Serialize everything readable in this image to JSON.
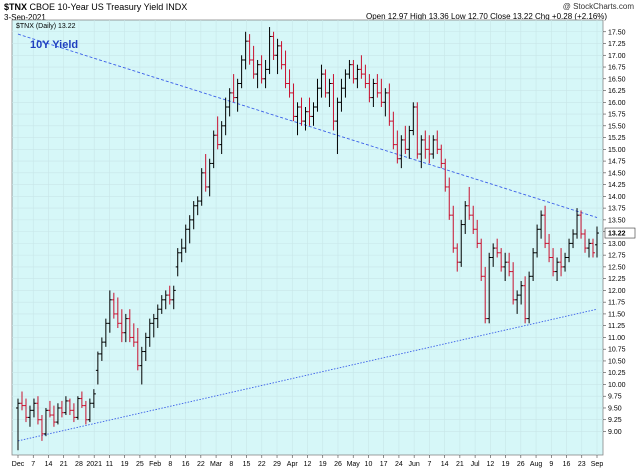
{
  "header": {
    "ticker": "$TNX",
    "name": "CBOE 10-Year US Treasury Yield",
    "exchange": "INDX",
    "date": "3-Sep-2021",
    "ohlc_text": "Open 12.97  High 13.36  Low 12.70  Close 13.22  Chg +0.28 (+2.16%)",
    "watermark": "@ StockCharts.com"
  },
  "chart_data": {
    "type": "ohlc",
    "inner_label": "$TNX (Daily) 13.22",
    "series_label": "10Y Yield",
    "last_value_label": "13.22",
    "ylim": [
      8.5,
      17.75
    ],
    "yticks": [
      9.0,
      9.25,
      9.5,
      9.75,
      10.0,
      10.25,
      10.5,
      10.75,
      11.0,
      11.25,
      11.5,
      11.75,
      12.0,
      12.25,
      12.5,
      12.75,
      13.0,
      13.25,
      13.5,
      13.75,
      14.0,
      14.25,
      14.5,
      14.75,
      15.0,
      15.25,
      15.5,
      15.75,
      16.0,
      16.25,
      16.5,
      16.75,
      17.0,
      17.25,
      17.5
    ],
    "xtick_labels": [
      "Dec",
      "7",
      "14",
      "21",
      "28",
      "2021",
      "11",
      "19",
      "25",
      "Feb",
      "8",
      "16",
      "22",
      "Mar",
      "8",
      "15",
      "22",
      "29",
      "Apr",
      "12",
      "19",
      "26",
      "May",
      "10",
      "17",
      "24",
      "Jun",
      "7",
      "14",
      "21",
      "Jul",
      "12",
      "19",
      "26",
      "Aug",
      "9",
      "16",
      "23",
      "Sep"
    ],
    "bars": [
      [
        9.5,
        9.7,
        8.6,
        9.6
      ],
      [
        9.6,
        9.85,
        9.45,
        9.55
      ],
      [
        9.55,
        9.7,
        9.2,
        9.3
      ],
      [
        9.3,
        9.55,
        9.1,
        9.45
      ],
      [
        9.45,
        9.7,
        9.3,
        9.6
      ],
      [
        9.6,
        9.75,
        9.15,
        9.25
      ],
      [
        9.25,
        9.35,
        8.8,
        8.95
      ],
      [
        8.95,
        9.5,
        8.9,
        9.45
      ],
      [
        9.45,
        9.65,
        9.3,
        9.35
      ],
      [
        9.35,
        9.55,
        9.1,
        9.2
      ],
      [
        9.2,
        9.6,
        9.15,
        9.5
      ],
      [
        9.5,
        9.65,
        9.3,
        9.4
      ],
      [
        9.4,
        9.75,
        9.35,
        9.65
      ],
      [
        9.65,
        9.7,
        9.35,
        9.45
      ],
      [
        9.45,
        9.6,
        9.2,
        9.3
      ],
      [
        9.3,
        9.75,
        9.25,
        9.7
      ],
      [
        9.7,
        9.85,
        9.5,
        9.55
      ],
      [
        9.55,
        9.65,
        9.15,
        9.25
      ],
      [
        9.25,
        9.7,
        9.2,
        9.6
      ],
      [
        9.6,
        9.9,
        9.5,
        9.8
      ],
      [
        10.3,
        10.7,
        10.0,
        10.65
      ],
      [
        10.65,
        11.0,
        10.5,
        10.9
      ],
      [
        10.9,
        11.4,
        10.8,
        11.3
      ],
      [
        11.3,
        12.0,
        11.1,
        11.8
      ],
      [
        11.8,
        11.95,
        11.4,
        11.5
      ],
      [
        11.5,
        11.85,
        11.2,
        11.3
      ],
      [
        11.3,
        11.6,
        10.9,
        11.1
      ],
      [
        11.1,
        11.5,
        10.9,
        11.4
      ],
      [
        11.4,
        11.6,
        10.9,
        11.0
      ],
      [
        11.0,
        11.3,
        10.8,
        10.9
      ],
      [
        10.9,
        11.2,
        10.3,
        10.4
      ],
      [
        10.4,
        10.8,
        10.0,
        10.7
      ],
      [
        10.7,
        11.1,
        10.5,
        11.0
      ],
      [
        11.0,
        11.4,
        10.8,
        11.3
      ],
      [
        11.3,
        11.5,
        11.0,
        11.4
      ],
      [
        11.4,
        11.7,
        11.2,
        11.6
      ],
      [
        11.6,
        11.9,
        11.5,
        11.8
      ],
      [
        11.8,
        12.0,
        11.6,
        11.9
      ],
      [
        11.9,
        12.1,
        11.7,
        11.8
      ],
      [
        11.8,
        12.1,
        11.6,
        12.0
      ],
      [
        12.5,
        12.9,
        12.3,
        12.8
      ],
      [
        12.8,
        13.1,
        12.6,
        12.9
      ],
      [
        12.9,
        13.4,
        12.8,
        13.3
      ],
      [
        13.3,
        13.6,
        13.0,
        13.5
      ],
      [
        13.5,
        13.9,
        13.3,
        13.8
      ],
      [
        13.8,
        14.0,
        13.6,
        13.9
      ],
      [
        13.9,
        14.6,
        13.8,
        14.5
      ],
      [
        14.5,
        14.9,
        14.1,
        14.2
      ],
      [
        14.2,
        14.8,
        14.0,
        14.7
      ],
      [
        14.7,
        15.4,
        14.6,
        15.3
      ],
      [
        15.3,
        15.7,
        15.0,
        15.1
      ],
      [
        15.1,
        15.6,
        14.9,
        15.5
      ],
      [
        15.5,
        16.1,
        15.3,
        15.9
      ],
      [
        15.9,
        16.3,
        15.7,
        16.2
      ],
      [
        16.2,
        16.6,
        16.0,
        16.1
      ],
      [
        16.1,
        16.5,
        15.8,
        16.4
      ],
      [
        16.4,
        17.0,
        16.3,
        16.9
      ],
      [
        16.9,
        17.5,
        16.7,
        17.3
      ],
      [
        17.3,
        17.45,
        16.8,
        16.9
      ],
      [
        16.9,
        17.2,
        16.5,
        16.6
      ],
      [
        16.6,
        16.9,
        16.3,
        16.8
      ],
      [
        16.8,
        17.0,
        16.4,
        16.5
      ],
      [
        16.5,
        16.9,
        16.3,
        16.7
      ],
      [
        16.7,
        17.6,
        16.6,
        17.4
      ],
      [
        17.4,
        17.5,
        16.9,
        17.0
      ],
      [
        17.0,
        17.35,
        16.6,
        17.2
      ],
      [
        17.2,
        17.3,
        16.7,
        16.8
      ],
      [
        16.8,
        17.1,
        16.3,
        16.4
      ],
      [
        16.4,
        16.7,
        16.1,
        16.2
      ],
      [
        16.2,
        16.4,
        15.6,
        15.7
      ],
      [
        15.7,
        16.0,
        15.3,
        15.9
      ],
      [
        15.9,
        16.1,
        15.5,
        15.6
      ],
      [
        15.6,
        15.9,
        15.4,
        15.8
      ],
      [
        15.8,
        16.1,
        15.5,
        15.7
      ],
      [
        15.7,
        16.0,
        15.5,
        15.9
      ],
      [
        15.9,
        16.5,
        15.8,
        16.3
      ],
      [
        16.3,
        16.8,
        16.1,
        16.6
      ],
      [
        16.6,
        16.7,
        16.1,
        16.2
      ],
      [
        16.2,
        16.5,
        15.9,
        16.4
      ],
      [
        16.4,
        16.6,
        15.4,
        15.6
      ],
      [
        15.6,
        16.1,
        14.9,
        16.0
      ],
      [
        16.0,
        16.5,
        15.8,
        16.3
      ],
      [
        16.3,
        16.7,
        16.1,
        16.6
      ],
      [
        16.6,
        16.9,
        16.5,
        16.8
      ],
      [
        16.8,
        16.9,
        16.4,
        16.5
      ],
      [
        16.5,
        16.8,
        16.3,
        16.7
      ],
      [
        16.7,
        17.0,
        16.5,
        16.6
      ],
      [
        16.6,
        16.8,
        16.3,
        16.4
      ],
      [
        16.4,
        16.6,
        16.0,
        16.1
      ],
      [
        16.1,
        16.5,
        15.9,
        16.4
      ],
      [
        16.4,
        16.6,
        16.1,
        16.2
      ],
      [
        16.2,
        16.5,
        15.9,
        16.0
      ],
      [
        16.0,
        16.3,
        15.7,
        16.2
      ],
      [
        16.2,
        16.4,
        15.5,
        15.6
      ],
      [
        15.6,
        15.8,
        15.0,
        15.1
      ],
      [
        15.1,
        15.4,
        14.7,
        14.8
      ],
      [
        14.8,
        15.3,
        14.6,
        15.2
      ],
      [
        15.2,
        15.5,
        14.9,
        15.0
      ],
      [
        15.0,
        15.5,
        14.8,
        15.4
      ],
      [
        15.4,
        16.0,
        15.3,
        15.9
      ],
      [
        15.9,
        16.0,
        14.8,
        14.9
      ],
      [
        14.9,
        15.3,
        14.6,
        15.2
      ],
      [
        15.2,
        15.4,
        14.8,
        15.0
      ],
      [
        15.0,
        15.3,
        14.7,
        14.9
      ],
      [
        14.9,
        15.3,
        14.8,
        15.2
      ],
      [
        15.2,
        15.4,
        14.9,
        15.0
      ],
      [
        15.0,
        15.1,
        14.6,
        14.7
      ],
      [
        14.7,
        14.8,
        14.1,
        14.2
      ],
      [
        14.2,
        14.4,
        13.5,
        13.6
      ],
      [
        13.6,
        13.8,
        12.8,
        12.9
      ],
      [
        12.9,
        13.0,
        12.4,
        12.6
      ],
      [
        12.6,
        13.5,
        12.5,
        13.4
      ],
      [
        13.4,
        13.9,
        13.2,
        13.8
      ],
      [
        13.8,
        14.2,
        13.5,
        13.6
      ],
      [
        13.6,
        13.8,
        13.2,
        13.3
      ],
      [
        13.3,
        13.5,
        12.9,
        13.0
      ],
      [
        13.0,
        13.1,
        12.2,
        12.3
      ],
      [
        12.3,
        12.5,
        11.3,
        11.4
      ],
      [
        11.4,
        12.8,
        11.3,
        12.7
      ],
      [
        12.7,
        13.0,
        12.5,
        12.9
      ],
      [
        12.9,
        13.1,
        12.7,
        12.8
      ],
      [
        12.8,
        12.9,
        12.4,
        12.5
      ],
      [
        12.5,
        12.8,
        12.2,
        12.6
      ],
      [
        12.6,
        12.8,
        12.3,
        12.4
      ],
      [
        12.4,
        12.6,
        11.7,
        11.8
      ],
      [
        11.8,
        12.0,
        11.5,
        11.9
      ],
      [
        11.9,
        12.2,
        11.7,
        12.1
      ],
      [
        12.1,
        12.3,
        11.3,
        11.4
      ],
      [
        11.4,
        12.4,
        11.3,
        12.3
      ],
      [
        12.3,
        12.9,
        12.2,
        12.8
      ],
      [
        12.8,
        13.4,
        12.7,
        13.3
      ],
      [
        13.3,
        13.7,
        13.1,
        13.6
      ],
      [
        13.6,
        13.8,
        12.9,
        13.0
      ],
      [
        13.0,
        13.2,
        12.6,
        12.7
      ],
      [
        12.7,
        12.9,
        12.3,
        12.4
      ],
      [
        12.4,
        12.7,
        12.2,
        12.6
      ],
      [
        12.6,
        12.9,
        12.3,
        12.5
      ],
      [
        12.5,
        12.8,
        12.4,
        12.7
      ],
      [
        12.7,
        13.1,
        12.6,
        13.0
      ],
      [
        13.0,
        13.3,
        12.9,
        13.2
      ],
      [
        13.2,
        13.75,
        13.1,
        13.6
      ],
      [
        13.6,
        13.7,
        13.1,
        13.2
      ],
      [
        13.2,
        13.3,
        12.8,
        12.9
      ],
      [
        12.9,
        13.1,
        12.7,
        13.0
      ],
      [
        13.0,
        13.1,
        12.7,
        12.8
      ],
      [
        12.97,
        13.36,
        12.7,
        13.22
      ]
    ],
    "trendlines": [
      {
        "style": "dashed",
        "from": [
          0,
          17.45
        ],
        "to": [
          145,
          13.55
        ]
      },
      {
        "style": "dotted",
        "from": [
          0,
          8.8
        ],
        "to": [
          145,
          11.6
        ]
      }
    ]
  }
}
